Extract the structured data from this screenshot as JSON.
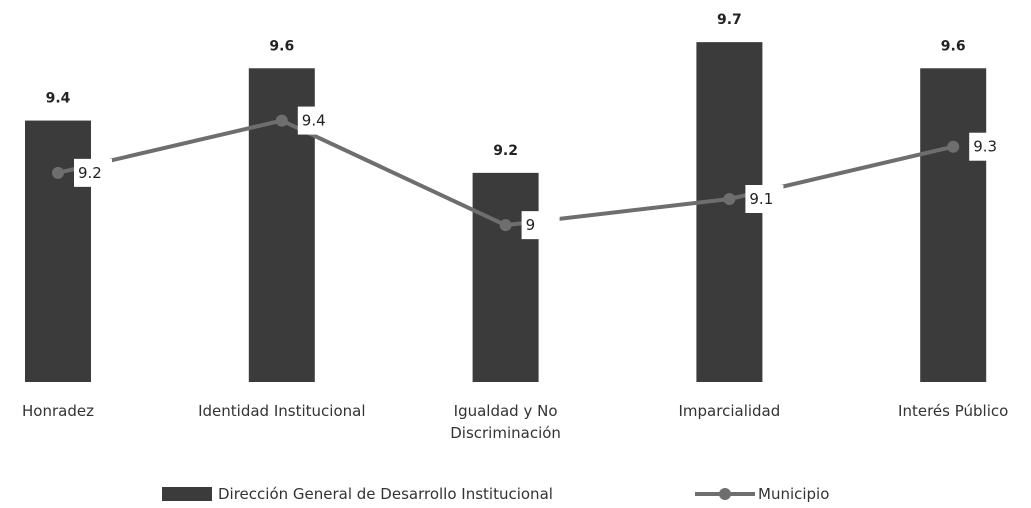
{
  "chart_data": {
    "type": "bar",
    "categories": [
      "Honradez",
      "Identidad Institucional",
      "Igualdad y No Discriminación",
      "Imparcialidad",
      "Interés Público"
    ],
    "series": [
      {
        "name": "Dirección General de Desarrollo Institucional",
        "type": "bar",
        "color": "#3b3b3b",
        "values": [
          9.4,
          9.6,
          9.2,
          9.7,
          9.6
        ]
      },
      {
        "name": "Municipio",
        "type": "line",
        "color": "#6e6e6e",
        "values": [
          9.2,
          9.4,
          9,
          9.1,
          9.3
        ]
      }
    ],
    "ylim": [
      8.4,
      9.8
    ]
  }
}
